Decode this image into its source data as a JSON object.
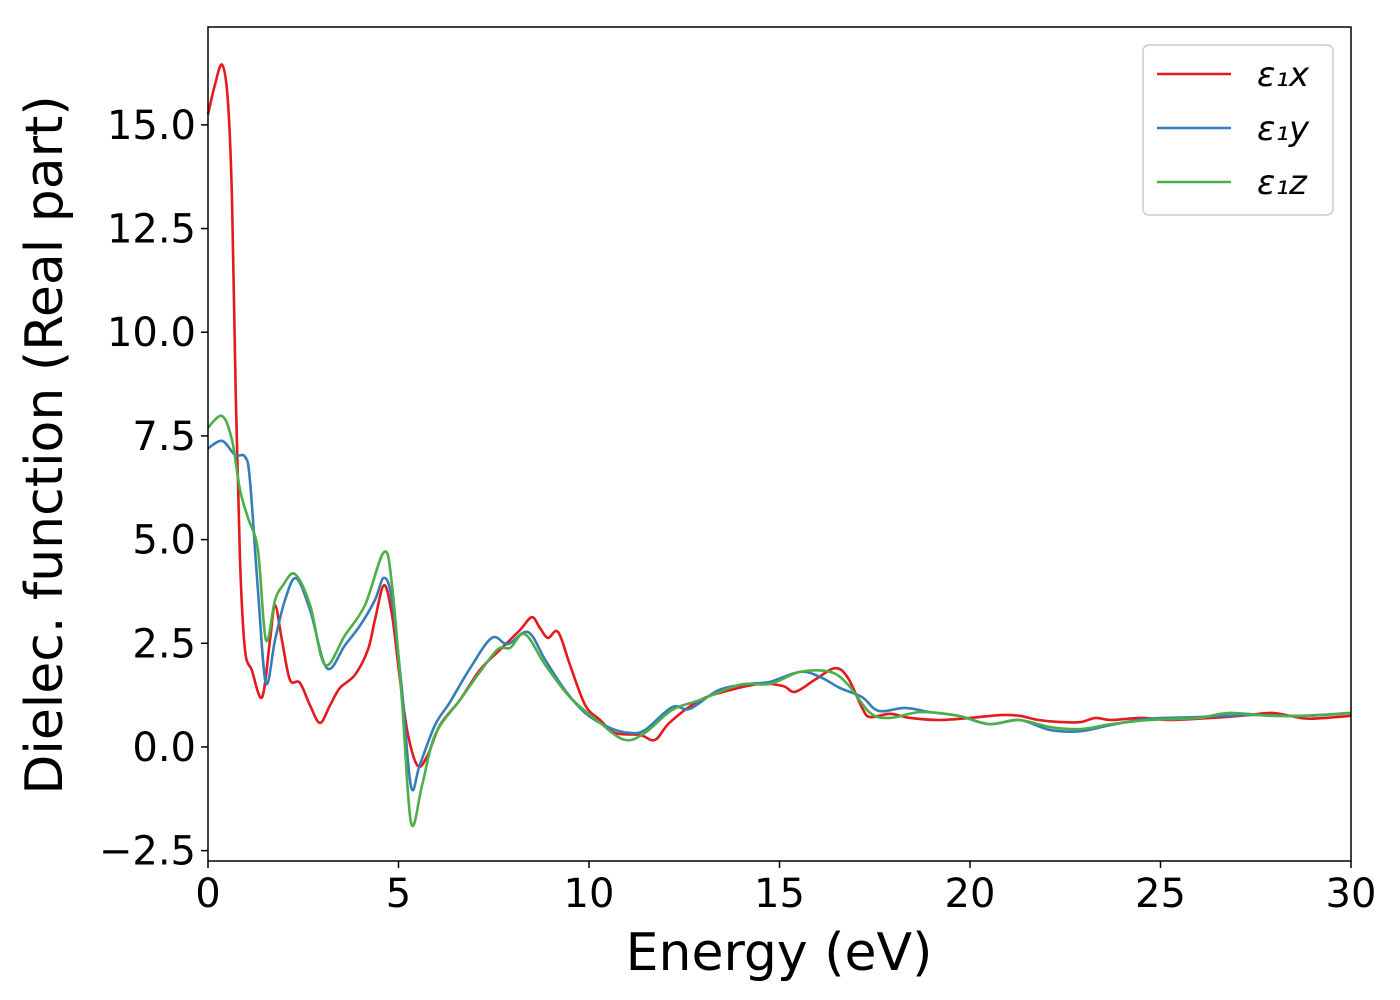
{
  "chart_data": {
    "type": "line",
    "title": "",
    "xlabel": "Energy (eV)",
    "ylabel": "Dielec. function (Real part)",
    "xlim": [
      0,
      30
    ],
    "ylim": [
      -2.75,
      17.36
    ],
    "xticks": [
      0,
      5,
      10,
      15,
      20,
      25,
      30
    ],
    "xtick_labels": [
      "0",
      "5",
      "10",
      "15",
      "20",
      "25",
      "30"
    ],
    "yticks": [
      -2.5,
      0,
      2.5,
      5,
      7.5,
      10,
      12.5,
      15
    ],
    "ytick_labels": [
      "−2.5",
      "0.0",
      "2.5",
      "5.0",
      "7.5",
      "10.0",
      "12.5",
      "15.0"
    ],
    "grid": false,
    "legend_position": "top-right",
    "series": [
      {
        "name": "ε₁x",
        "color": "#e41a1c",
        "x": [
          0,
          0.18,
          0.37,
          0.52,
          0.63,
          0.73,
          0.84,
          0.97,
          1.15,
          1.42,
          1.63,
          1.76,
          1.94,
          2.15,
          2.41,
          2.68,
          2.94,
          3.2,
          3.46,
          3.86,
          4.2,
          4.38,
          4.62,
          4.83,
          5.04,
          5.25,
          5.51,
          5.77,
          6.09,
          6.61,
          7.14,
          7.66,
          8.19,
          8.5,
          8.71,
          8.92,
          9.19,
          9.5,
          9.9,
          10.29,
          10.68,
          11.34,
          11.73,
          12.13,
          12.91,
          13.7,
          14.49,
          15.09,
          15.41,
          15.93,
          16.46,
          16.8,
          17.17,
          17.38,
          17.9,
          18.43,
          19.2,
          20,
          20.8,
          21.3,
          21.8,
          22.4,
          22.9,
          23.3,
          23.7,
          24.5,
          25.2,
          26,
          27.1,
          27.9,
          28.4,
          28.9,
          30
        ],
        "y": [
          15.25,
          15.96,
          16.45,
          15.6,
          13.2,
          8.4,
          4.5,
          2.35,
          1.85,
          1.2,
          2.6,
          3.42,
          2.58,
          1.62,
          1.55,
          1.0,
          0.58,
          1.0,
          1.42,
          1.74,
          2.35,
          3.06,
          3.9,
          3.18,
          1.62,
          0.29,
          -0.46,
          -0.19,
          0.53,
          1.13,
          1.86,
          2.34,
          2.82,
          3.13,
          2.87,
          2.63,
          2.77,
          1.98,
          1.01,
          0.65,
          0.34,
          0.29,
          0.17,
          0.6,
          1.13,
          1.37,
          1.52,
          1.47,
          1.33,
          1.62,
          1.9,
          1.66,
          0.94,
          0.72,
          0.8,
          0.7,
          0.65,
          0.7,
          0.77,
          0.75,
          0.65,
          0.6,
          0.6,
          0.7,
          0.65,
          0.7,
          0.65,
          0.68,
          0.75,
          0.82,
          0.75,
          0.68,
          0.75
        ]
      },
      {
        "name": "ε₁y",
        "color": "#377eb8",
        "x": [
          0,
          0.37,
          0.71,
          0.97,
          1.1,
          1.31,
          1.52,
          1.76,
          2.02,
          2.31,
          2.68,
          3.12,
          3.6,
          4,
          4.38,
          4.62,
          4.83,
          5.09,
          5.33,
          5.56,
          5.96,
          6.35,
          6.88,
          7.45,
          7.87,
          8.4,
          8.85,
          9.37,
          9.9,
          10.55,
          11.07,
          11.47,
          12.18,
          12.65,
          13.4,
          14.2,
          14.75,
          15.54,
          16.06,
          16.59,
          17.17,
          17.6,
          18.3,
          18.95,
          19.7,
          20.5,
          21.3,
          22.1,
          22.9,
          23.7,
          24.7,
          26,
          27.3,
          28.7,
          30
        ],
        "y": [
          7.2,
          7.38,
          7.04,
          7.0,
          6.44,
          3.79,
          1.54,
          2.58,
          3.54,
          4.07,
          3.3,
          1.9,
          2.46,
          2.94,
          3.54,
          4.08,
          3.54,
          1.37,
          -0.96,
          -0.43,
          0.53,
          1.08,
          1.9,
          2.63,
          2.48,
          2.77,
          2.1,
          1.37,
          0.82,
          0.46,
          0.34,
          0.41,
          0.96,
          0.92,
          1.37,
          1.52,
          1.57,
          1.81,
          1.69,
          1.42,
          1.2,
          0.87,
          0.94,
          0.84,
          0.75,
          0.55,
          0.65,
          0.41,
          0.38,
          0.53,
          0.68,
          0.72,
          0.77,
          0.75,
          0.82
        ]
      },
      {
        "name": "ε₁z",
        "color": "#4daf4a",
        "x": [
          0,
          0.37,
          0.63,
          0.84,
          1.05,
          1.31,
          1.52,
          1.76,
          1.97,
          2.28,
          2.68,
          3.07,
          3.6,
          4.12,
          4.62,
          4.83,
          5.09,
          5.33,
          5.62,
          5.96,
          6.61,
          7.14,
          7.61,
          7.93,
          8.32,
          8.85,
          9.5,
          10.29,
          10.94,
          11.47,
          12.18,
          12.91,
          13.96,
          14.75,
          15.54,
          16.33,
          16.8,
          17.38,
          17.9,
          18.7,
          19.7,
          20.5,
          21.3,
          22.1,
          22.9,
          23.7,
          24.7,
          26,
          26.8,
          27.9,
          28.9,
          30
        ],
        "y": [
          7.7,
          7.98,
          7.4,
          6.2,
          5.52,
          4.75,
          2.58,
          3.54,
          3.9,
          4.17,
          3.42,
          1.98,
          2.7,
          3.42,
          4.7,
          3.9,
          1.13,
          -1.83,
          -0.92,
          0.29,
          1.13,
          1.81,
          2.36,
          2.39,
          2.72,
          1.98,
          1.2,
          0.58,
          0.17,
          0.34,
          0.89,
          1.13,
          1.5,
          1.52,
          1.81,
          1.81,
          1.5,
          0.82,
          0.7,
          0.84,
          0.75,
          0.55,
          0.65,
          0.48,
          0.43,
          0.55,
          0.65,
          0.7,
          0.82,
          0.75,
          0.75,
          0.82
        ]
      }
    ]
  }
}
